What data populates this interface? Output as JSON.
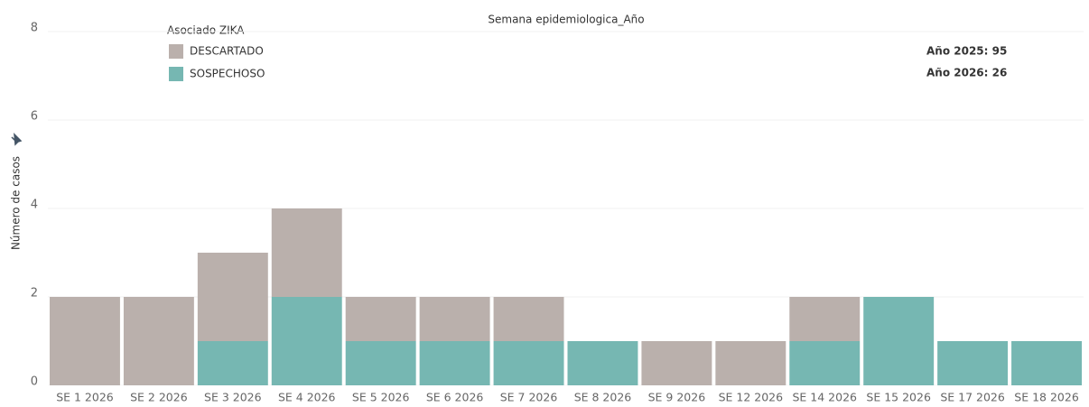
{
  "chart_data": {
    "type": "stacked_bar",
    "title": "Semana epidemiologica_Año",
    "y_label": "Número de casos",
    "legend_title": "Asociado ZIKA",
    "annotations": [
      "Año 2025: 95",
      "Año 2026: 26"
    ],
    "categories": [
      "SE 1 2026",
      "SE 2 2026",
      "SE 3 2026",
      "SE 4 2026",
      "SE 5 2026",
      "SE 6 2026",
      "SE 7 2026",
      "SE 8 2026",
      "SE 9 2026",
      "SE 12 2026",
      "SE 14 2026",
      "SE 15 2026",
      "SE 17 2026",
      "SE 18 2026"
    ],
    "series": [
      {
        "name": "DESCARTADO",
        "color": "#bab0ac",
        "values": [
          2,
          2,
          2,
          2,
          1,
          1,
          1,
          0,
          1,
          1,
          1,
          0,
          0,
          0
        ]
      },
      {
        "name": "SOSPECHOSO",
        "color": "#76b7b2",
        "values": [
          0,
          0,
          1,
          2,
          1,
          1,
          1,
          1,
          0,
          0,
          1,
          2,
          1,
          1
        ]
      }
    ],
    "ylim": [
      0,
      8
    ],
    "yticks": [
      0,
      2,
      4,
      6,
      8
    ],
    "grid": true
  }
}
